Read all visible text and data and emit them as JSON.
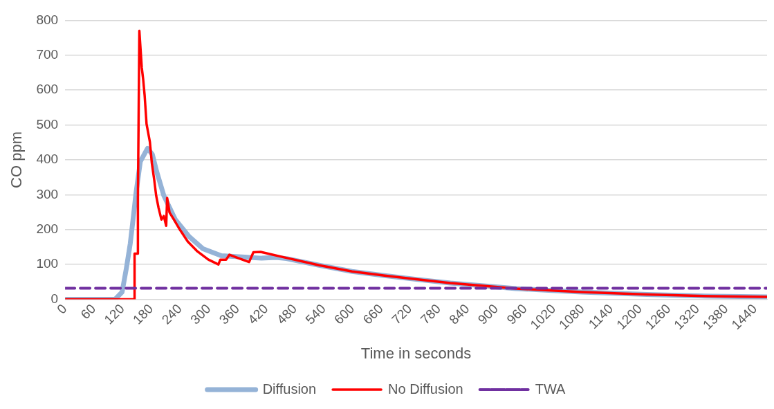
{
  "chart_data": {
    "type": "line",
    "xlabel": "Time in seconds",
    "ylabel": "CO ppm",
    "xlim": [
      0,
      1465
    ],
    "xticks": [
      0,
      60,
      120,
      180,
      240,
      300,
      360,
      420,
      480,
      540,
      600,
      660,
      720,
      780,
      840,
      900,
      960,
      1020,
      1080,
      1140,
      1200,
      1260,
      1320,
      1380,
      1440
    ],
    "ylim": [
      0,
      800
    ],
    "yticks": [
      0,
      100,
      200,
      300,
      400,
      500,
      600,
      700,
      800
    ],
    "grid": "y",
    "legend": "bottom",
    "marker": "none",
    "series": [
      {
        "name": "Diffusion",
        "color": "#95b3d7",
        "line_style": "solid",
        "x": [
          0,
          104,
          119,
          128,
          136,
          143,
          148,
          157,
          172,
          182,
          191,
          206,
          230,
          259,
          288,
          326,
          375,
          410,
          440,
          462,
          530,
          599,
          667,
          736,
          804,
          873,
          941,
          1009,
          1078,
          1214,
          1351,
          1465
        ],
        "values": [
          0,
          0,
          21,
          90,
          160,
          243,
          305,
          395,
          433,
          416,
          367,
          298,
          229,
          180,
          145,
          125,
          121,
          118,
          120,
          117,
          98,
          80,
          68,
          57,
          47,
          39,
          31,
          26,
          21,
          14,
          9,
          7
        ]
      },
      {
        "name": "No Diffusion",
        "color": "#ff0000",
        "line_style": "solid",
        "x": [
          0,
          145,
          145,
          152,
          152,
          155,
          160,
          163,
          166,
          170,
          177,
          181,
          186,
          190,
          195,
          201,
          206,
          211,
          213,
          218,
          227,
          239,
          256,
          275,
          299,
          320,
          324,
          336,
          343,
          362,
          384,
          393,
          408,
          462,
          530,
          599,
          667,
          736,
          804,
          873,
          941,
          1009,
          1078,
          1214,
          1351,
          1465
        ],
        "values": [
          0,
          0,
          131,
          131,
          291,
          770,
          665,
          630,
          585,
          503,
          451,
          391,
          343,
          298,
          263,
          229,
          239,
          211,
          291,
          249,
          229,
          201,
          166,
          139,
          114,
          100,
          114,
          114,
          128,
          118,
          107,
          135,
          136,
          119,
          98,
          80,
          68,
          57,
          47,
          39,
          31,
          26,
          21,
          14,
          9,
          7
        ]
      },
      {
        "name": "TWA",
        "color": "#7030a0",
        "line_style": "dashed",
        "x": [
          0,
          1465
        ],
        "values": [
          32,
          32
        ]
      }
    ]
  }
}
